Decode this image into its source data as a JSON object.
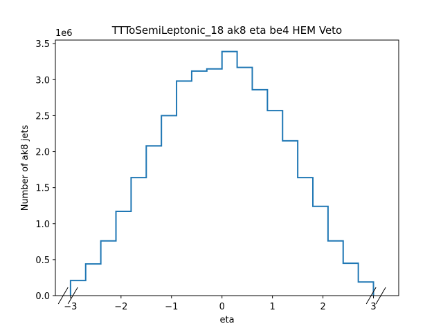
{
  "chart_data": {
    "type": "step",
    "title": "TTToSemiLeptonic_18 ak8 eta be4 HEM Veto",
    "xlabel": "eta",
    "ylabel": "Number of ak8 jets",
    "y_offset_text": "1e6",
    "y_scale": 1000000,
    "xlim": [
      -3.3,
      3.5
    ],
    "ylim": [
      0,
      3.55
    ],
    "x_ticks": [
      -3,
      -2,
      -1,
      0,
      1,
      2,
      3
    ],
    "x_tick_labels": [
      "−3",
      "−2",
      "−1",
      "0",
      "1",
      "2",
      "3"
    ],
    "y_ticks": [
      0,
      0.5,
      1.0,
      1.5,
      2.0,
      2.5,
      3.0,
      3.5
    ],
    "y_tick_labels": [
      "0.0",
      "0.5",
      "1.0",
      "1.5",
      "2.0",
      "2.5",
      "3.0",
      "3.5"
    ],
    "x_axis_break_markers": [
      -3.05,
      3.05
    ],
    "line_color": "#1f77b4",
    "bin_edges": [
      -3.0,
      -2.7,
      -2.4,
      -2.1,
      -1.8,
      -1.5,
      -1.2,
      -0.9,
      -0.6,
      -0.3,
      0.0,
      0.3,
      0.6,
      0.9,
      1.2,
      1.5,
      1.8,
      2.1,
      2.4,
      2.7,
      3.0
    ],
    "values": [
      0.21,
      0.44,
      0.76,
      1.17,
      1.64,
      2.08,
      2.5,
      2.98,
      3.12,
      3.15,
      3.39,
      3.17,
      2.86,
      2.57,
      2.15,
      1.64,
      1.24,
      0.76,
      0.45,
      0.19
    ]
  }
}
